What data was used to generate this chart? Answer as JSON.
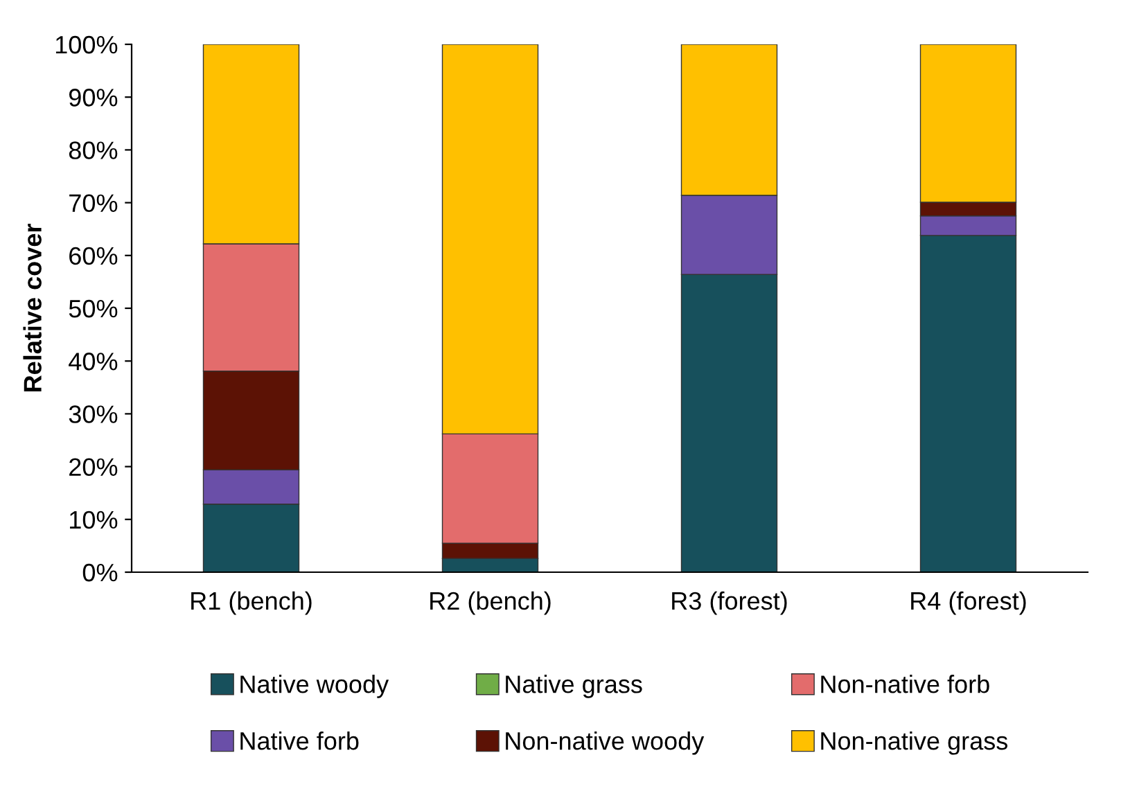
{
  "chart_data": {
    "type": "bar",
    "stacked": true,
    "ylabel": "Relative cover",
    "categories": [
      "R1 (bench)",
      "R2 (bench)",
      "R3 (forest)",
      "R4 (forest)"
    ],
    "series": [
      {
        "name": "Native woody",
        "color": "#17505c",
        "values": [
          12.9,
          2.6,
          56.4,
          63.8
        ]
      },
      {
        "name": "Native forb",
        "color": "#6a4fa8",
        "values": [
          6.5,
          0,
          15.0,
          3.7
        ]
      },
      {
        "name": "Native grass",
        "color": "#70ad47",
        "values": [
          0,
          0,
          0,
          0
        ]
      },
      {
        "name": "Non-native woody",
        "color": "#5c1205",
        "values": [
          18.7,
          2.9,
          0,
          2.6
        ]
      },
      {
        "name": "Non-native forb",
        "color": "#e36c6c",
        "values": [
          24.1,
          20.7,
          0,
          0
        ]
      },
      {
        "name": "Non-native grass",
        "color": "#ffc000",
        "values": [
          37.8,
          73.8,
          28.6,
          29.9
        ]
      }
    ],
    "ylim": [
      0,
      100
    ],
    "yticks": [
      {
        "value": 0,
        "label": "0%"
      },
      {
        "value": 10,
        "label": "10%"
      },
      {
        "value": 20,
        "label": "20%"
      },
      {
        "value": 30,
        "label": "30%"
      },
      {
        "value": 40,
        "label": "40%"
      },
      {
        "value": 50,
        "label": "50%"
      },
      {
        "value": 60,
        "label": "60%"
      },
      {
        "value": 70,
        "label": "70%"
      },
      {
        "value": 80,
        "label": "80%"
      },
      {
        "value": 90,
        "label": "90%"
      },
      {
        "value": 100,
        "label": "100%"
      }
    ],
    "grid": false,
    "legend": "bottom"
  }
}
